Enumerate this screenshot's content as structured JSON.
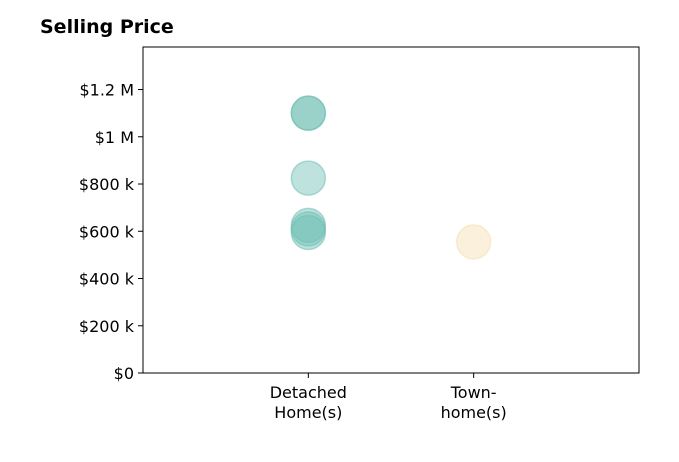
{
  "chart_data": {
    "type": "scatter",
    "title": "Selling Price",
    "xlabel": "",
    "ylabel": "",
    "categories": [
      [
        "Detached",
        "Home(s)"
      ],
      [
        "Town-",
        "home(s)"
      ]
    ],
    "x_range": [
      -1,
      2
    ],
    "ylim": [
      0,
      1380000
    ],
    "y_ticks": [
      {
        "value": 0,
        "label": "$0"
      },
      {
        "value": 200000,
        "label": "$200 k"
      },
      {
        "value": 400000,
        "label": "$400 k"
      },
      {
        "value": 600000,
        "label": "$600 k"
      },
      {
        "value": 800000,
        "label": "$800 k"
      },
      {
        "value": 1000000,
        "label": "$1 M"
      },
      {
        "value": 1200000,
        "label": "$1.2 M"
      }
    ],
    "grid": false,
    "legend": "none",
    "series": [
      {
        "color": "#6fbfb3",
        "points": [
          {
            "category": 0,
            "y": 1100000
          },
          {
            "category": 0,
            "y": 1100000
          },
          {
            "category": 0,
            "y": 825000
          },
          {
            "category": 0,
            "y": 625000
          },
          {
            "category": 0,
            "y": 595000
          },
          {
            "category": 0,
            "y": 610000
          }
        ]
      },
      {
        "color": "#f5deb0",
        "points": [
          {
            "category": 1,
            "y": 555000
          }
        ]
      }
    ]
  }
}
